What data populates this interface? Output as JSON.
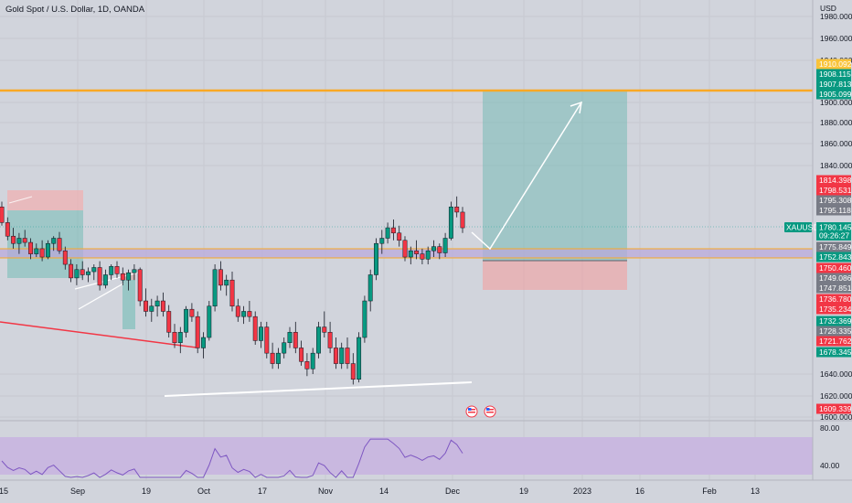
{
  "header": {
    "title": "Gold Spot / U.S. Dollar, 1D, OANDA",
    "currency": "USD"
  },
  "symbol_tag": {
    "symbol": "XAUUSD",
    "price": "1780.145",
    "countdown": "09:26:27"
  },
  "price_axis": {
    "ticks": [
      "1980.000",
      "1960.000",
      "1940.000",
      "1900.000",
      "1880.000",
      "1860.000",
      "1840.000",
      "1640.000",
      "1620.000",
      "1600.000"
    ]
  },
  "price_tags": [
    {
      "text": "1910.092",
      "color": "#f9c33a",
      "dark": true
    },
    {
      "text": "1908.115",
      "color": "#089981"
    },
    {
      "text": "1907.813",
      "color": "#089981"
    },
    {
      "text": "1905.099",
      "color": "#089981"
    },
    {
      "text": "1814.398",
      "color": "#f23645"
    },
    {
      "text": "1798.531",
      "color": "#f23645"
    },
    {
      "text": "1795.308",
      "color": "#787b86"
    },
    {
      "text": "1795.118",
      "color": "#787b86"
    },
    {
      "text": "1775.849",
      "color": "#787b86"
    },
    {
      "text": "1752.843",
      "color": "#089981"
    },
    {
      "text": "1750.460",
      "color": "#f23645"
    },
    {
      "text": "1749.086",
      "color": "#787b86"
    },
    {
      "text": "1747.851",
      "color": "#787b86"
    },
    {
      "text": "1736.780",
      "color": "#f23645"
    },
    {
      "text": "1735.234",
      "color": "#f23645"
    },
    {
      "text": "1732.369",
      "color": "#089981"
    },
    {
      "text": "1728.335",
      "color": "#787b86"
    },
    {
      "text": "1721.762",
      "color": "#f23645"
    },
    {
      "text": "1678.345",
      "color": "#089981"
    },
    {
      "text": "1609.339",
      "color": "#f23645"
    }
  ],
  "rsi_axis": {
    "ticks": [
      "80.00",
      "40.00"
    ]
  },
  "time_axis": {
    "labels": [
      "15",
      "Sep",
      "19",
      "Oct",
      "17",
      "Nov",
      "14",
      "Dec",
      "19",
      "2023",
      "16",
      "Feb",
      "13"
    ]
  },
  "colors": {
    "up": "#089981",
    "down": "#f23645",
    "level": "#f9a825",
    "rsi_line": "#7e57c2",
    "rsi_band": "#c9b8e0"
  },
  "candles": [
    [
      1800,
      1805,
      1782,
      1785
    ],
    [
      1785,
      1790,
      1768,
      1772
    ],
    [
      1772,
      1780,
      1760,
      1765
    ],
    [
      1765,
      1775,
      1755,
      1770
    ],
    [
      1770,
      1778,
      1762,
      1766
    ],
    [
      1766,
      1770,
      1750,
      1755
    ],
    [
      1755,
      1765,
      1752,
      1760
    ],
    [
      1760,
      1768,
      1748,
      1752
    ],
    [
      1752,
      1768,
      1750,
      1765
    ],
    [
      1765,
      1772,
      1758,
      1770
    ],
    [
      1770,
      1776,
      1755,
      1758
    ],
    [
      1758,
      1762,
      1740,
      1745
    ],
    [
      1745,
      1750,
      1728,
      1732
    ],
    [
      1732,
      1745,
      1725,
      1740
    ],
    [
      1740,
      1748,
      1730,
      1735
    ],
    [
      1735,
      1742,
      1728,
      1738
    ],
    [
      1738,
      1745,
      1730,
      1742
    ],
    [
      1742,
      1748,
      1720,
      1725
    ],
    [
      1725,
      1740,
      1722,
      1735
    ],
    [
      1735,
      1745,
      1730,
      1743
    ],
    [
      1743,
      1748,
      1732,
      1736
    ],
    [
      1736,
      1742,
      1725,
      1730
    ],
    [
      1730,
      1740,
      1720,
      1737
    ],
    [
      1737,
      1745,
      1730,
      1740
    ],
    [
      1740,
      1742,
      1705,
      1710
    ],
    [
      1710,
      1722,
      1695,
      1700
    ],
    [
      1700,
      1712,
      1690,
      1705
    ],
    [
      1705,
      1715,
      1695,
      1710
    ],
    [
      1710,
      1718,
      1695,
      1700
    ],
    [
      1700,
      1706,
      1675,
      1680
    ],
    [
      1680,
      1688,
      1665,
      1670
    ],
    [
      1670,
      1685,
      1660,
      1680
    ],
    [
      1680,
      1705,
      1675,
      1702
    ],
    [
      1702,
      1708,
      1690,
      1695
    ],
    [
      1695,
      1700,
      1660,
      1665
    ],
    [
      1665,
      1680,
      1655,
      1675
    ],
    [
      1675,
      1710,
      1672,
      1705
    ],
    [
      1705,
      1745,
      1700,
      1740
    ],
    [
      1740,
      1748,
      1720,
      1725
    ],
    [
      1725,
      1735,
      1715,
      1730
    ],
    [
      1730,
      1738,
      1700,
      1705
    ],
    [
      1705,
      1712,
      1690,
      1695
    ],
    [
      1695,
      1705,
      1688,
      1700
    ],
    [
      1700,
      1710,
      1690,
      1695
    ],
    [
      1695,
      1700,
      1668,
      1672
    ],
    [
      1672,
      1690,
      1665,
      1685
    ],
    [
      1685,
      1690,
      1655,
      1660
    ],
    [
      1660,
      1670,
      1645,
      1650
    ],
    [
      1650,
      1665,
      1645,
      1660
    ],
    [
      1660,
      1675,
      1655,
      1670
    ],
    [
      1670,
      1685,
      1665,
      1680
    ],
    [
      1680,
      1690,
      1660,
      1665
    ],
    [
      1665,
      1672,
      1648,
      1652
    ],
    [
      1652,
      1660,
      1638,
      1645
    ],
    [
      1645,
      1665,
      1640,
      1660
    ],
    [
      1660,
      1690,
      1655,
      1685
    ],
    [
      1685,
      1700,
      1675,
      1680
    ],
    [
      1680,
      1690,
      1660,
      1665
    ],
    [
      1665,
      1675,
      1645,
      1650
    ],
    [
      1650,
      1670,
      1645,
      1665
    ],
    [
      1665,
      1675,
      1645,
      1650
    ],
    [
      1650,
      1660,
      1630,
      1635
    ],
    [
      1635,
      1680,
      1632,
      1675
    ],
    [
      1675,
      1715,
      1670,
      1710
    ],
    [
      1710,
      1740,
      1700,
      1735
    ],
    [
      1735,
      1770,
      1730,
      1765
    ],
    [
      1765,
      1778,
      1755,
      1770
    ],
    [
      1770,
      1785,
      1765,
      1780
    ],
    [
      1780,
      1788,
      1768,
      1775
    ],
    [
      1775,
      1782,
      1762,
      1768
    ],
    [
      1768,
      1772,
      1748,
      1752
    ],
    [
      1752,
      1762,
      1745,
      1758
    ],
    [
      1758,
      1768,
      1750,
      1755
    ],
    [
      1755,
      1760,
      1745,
      1750
    ],
    [
      1750,
      1762,
      1745,
      1758
    ],
    [
      1758,
      1768,
      1752,
      1762
    ],
    [
      1762,
      1765,
      1750,
      1756
    ],
    [
      1756,
      1775,
      1752,
      1770
    ],
    [
      1770,
      1805,
      1768,
      1800
    ],
    [
      1800,
      1810,
      1790,
      1795
    ],
    [
      1795,
      1800,
      1775,
      1780
    ]
  ]
}
